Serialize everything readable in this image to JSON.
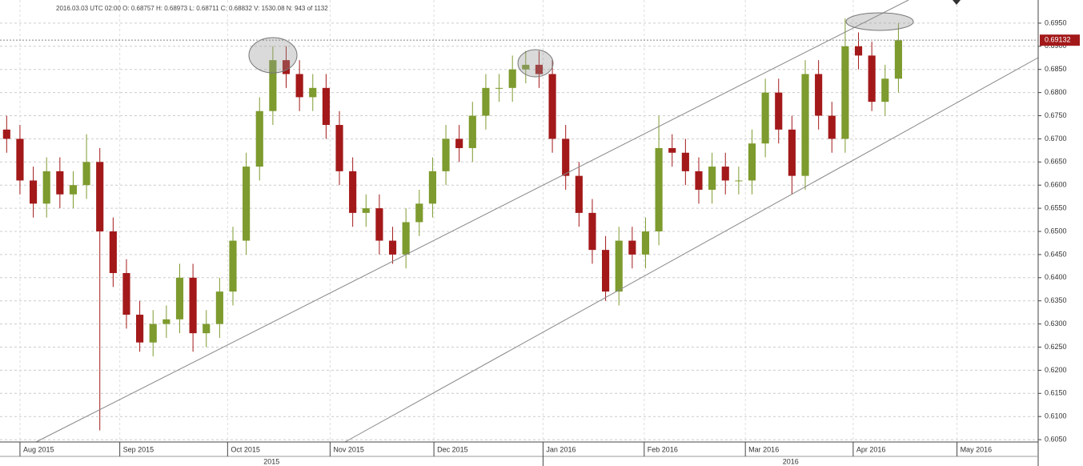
{
  "chart_data": {
    "type": "candlestick",
    "info": "2016.03.03  UTC 02:00   O: 0.68757   H: 0.68973   L: 0.68711   C: 0.68832   V: 1530.08   N: 943 of 1132",
    "open": [
      0.672,
      0.67,
      0.661,
      0.656,
      0.663,
      0.658,
      0.66,
      0.665,
      0.65,
      0.641,
      0.632,
      0.626,
      0.63,
      0.631,
      0.64,
      0.628,
      0.63,
      0.637,
      0.648,
      0.664,
      0.676,
      0.687,
      0.684,
      0.679,
      0.681,
      0.673,
      0.663,
      0.654,
      0.655,
      0.648,
      0.645,
      0.652,
      0.656,
      0.663,
      0.67,
      0.668,
      0.675,
      0.681,
      0.681,
      0.685,
      0.686,
      0.684,
      0.67,
      0.662,
      0.654,
      0.646,
      0.637,
      0.648,
      0.645,
      0.65,
      0.668,
      0.667,
      0.663,
      0.659,
      0.664,
      0.661,
      0.661,
      0.669,
      0.68,
      0.672,
      0.662,
      0.684,
      0.675,
      0.67,
      0.69,
      0.688,
      0.678,
      0.683
    ],
    "high": [
      0.675,
      0.673,
      0.664,
      0.666,
      0.666,
      0.663,
      0.671,
      0.668,
      0.653,
      0.644,
      0.635,
      0.633,
      0.634,
      0.643,
      0.643,
      0.633,
      0.64,
      0.651,
      0.667,
      0.679,
      0.69,
      0.69,
      0.687,
      0.684,
      0.684,
      0.676,
      0.666,
      0.658,
      0.658,
      0.651,
      0.655,
      0.659,
      0.666,
      0.673,
      0.673,
      0.678,
      0.684,
      0.684,
      0.688,
      0.689,
      0.689,
      0.687,
      0.673,
      0.665,
      0.657,
      0.649,
      0.651,
      0.651,
      0.653,
      0.675,
      0.671,
      0.67,
      0.666,
      0.667,
      0.667,
      0.664,
      0.672,
      0.683,
      0.683,
      0.675,
      0.687,
      0.687,
      0.678,
      0.696,
      0.693,
      0.691,
      0.686,
      0.695
    ],
    "low": [
      0.667,
      0.658,
      0.653,
      0.653,
      0.655,
      0.655,
      0.657,
      0.607,
      0.638,
      0.629,
      0.624,
      0.623,
      0.627,
      0.628,
      0.624,
      0.625,
      0.627,
      0.634,
      0.645,
      0.661,
      0.673,
      0.681,
      0.676,
      0.676,
      0.67,
      0.66,
      0.651,
      0.651,
      0.645,
      0.643,
      0.642,
      0.649,
      0.653,
      0.66,
      0.665,
      0.665,
      0.672,
      0.678,
      0.678,
      0.682,
      0.681,
      0.667,
      0.659,
      0.651,
      0.643,
      0.635,
      0.634,
      0.642,
      0.642,
      0.647,
      0.664,
      0.66,
      0.656,
      0.656,
      0.658,
      0.658,
      0.658,
      0.666,
      0.669,
      0.658,
      0.659,
      0.672,
      0.667,
      0.667,
      0.685,
      0.676,
      0.675,
      0.68
    ],
    "close": [
      0.67,
      0.661,
      0.656,
      0.663,
      0.658,
      0.66,
      0.665,
      0.65,
      0.641,
      0.632,
      0.626,
      0.63,
      0.631,
      0.64,
      0.628,
      0.63,
      0.637,
      0.648,
      0.664,
      0.676,
      0.687,
      0.684,
      0.679,
      0.681,
      0.673,
      0.663,
      0.654,
      0.655,
      0.648,
      0.645,
      0.652,
      0.656,
      0.663,
      0.67,
      0.668,
      0.675,
      0.681,
      0.681,
      0.685,
      0.686,
      0.684,
      0.67,
      0.662,
      0.654,
      0.646,
      0.637,
      0.648,
      0.645,
      0.65,
      0.668,
      0.667,
      0.663,
      0.659,
      0.664,
      0.661,
      0.661,
      0.669,
      0.68,
      0.672,
      0.662,
      0.684,
      0.675,
      0.67,
      0.69,
      0.688,
      0.678,
      0.683,
      0.6913
    ],
    "up_color": "#7d9b2e",
    "down_color": "#a3191a",
    "last_price": 0.69132,
    "xlim": [
      0,
      78
    ],
    "xticks": [
      {
        "value": 1.5,
        "label": "Aug 2015"
      },
      {
        "value": 9,
        "label": "Sep 2015"
      },
      {
        "value": 17.1,
        "label": "Oct 2015"
      },
      {
        "value": 24.8,
        "label": "Nov 2015"
      },
      {
        "value": 32.6,
        "label": "Dec 2015"
      },
      {
        "value": 40.8,
        "label": "Jan 2016"
      },
      {
        "value": 48.4,
        "label": "Feb 2016"
      },
      {
        "value": 56,
        "label": "Mar 2016"
      },
      {
        "value": 64.1,
        "label": "Apr 2016"
      },
      {
        "value": 71.9,
        "label": "May 2016"
      }
    ],
    "year_labels": [
      "2015",
      "2016"
    ],
    "ylim": [
      0.6045,
      0.7
    ],
    "yticks": [
      {
        "value": 0.605,
        "label": "0.6050"
      },
      {
        "value": 0.61,
        "label": "0.6100"
      },
      {
        "value": 0.615,
        "label": "0.6150"
      },
      {
        "value": 0.62,
        "label": "0.6200"
      },
      {
        "value": 0.625,
        "label": "0.6250"
      },
      {
        "value": 0.63,
        "label": "0.6300"
      },
      {
        "value": 0.635,
        "label": "0.6350"
      },
      {
        "value": 0.64,
        "label": "0.6400"
      },
      {
        "value": 0.645,
        "label": "0.6450"
      },
      {
        "value": 0.65,
        "label": "0.6500"
      },
      {
        "value": 0.655,
        "label": "0.6550"
      },
      {
        "value": 0.66,
        "label": "0.6600"
      },
      {
        "value": 0.665,
        "label": "0.6650"
      },
      {
        "value": 0.67,
        "label": "0.6700"
      },
      {
        "value": 0.675,
        "label": "0.6750"
      },
      {
        "value": 0.68,
        "label": "0.6800"
      },
      {
        "value": 0.685,
        "label": "0.6850"
      },
      {
        "value": 0.69,
        "label": "0.6900"
      },
      {
        "value": 0.695,
        "label": "0.6950"
      }
    ],
    "grid": true
  }
}
